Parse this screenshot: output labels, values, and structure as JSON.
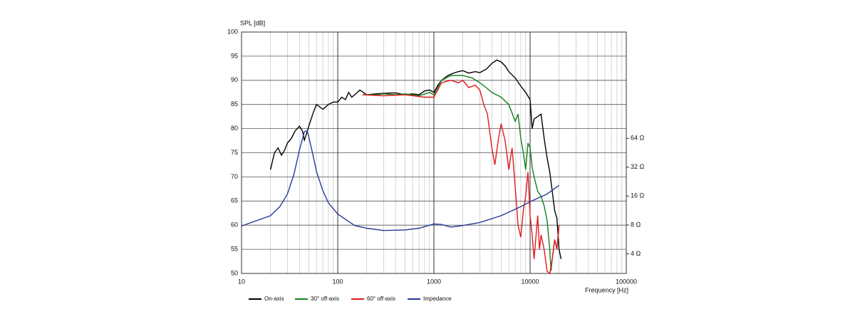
{
  "chart_data": {
    "type": "line",
    "y_label": "SPL [dB]",
    "x_label": "Frequency [Hz]",
    "x_log": true,
    "y2_log": true,
    "grid": true,
    "legend": "bottom",
    "xlim": [
      10,
      100000
    ],
    "xticks": [
      10,
      100,
      1000,
      10000,
      100000
    ],
    "ylim": [
      50,
      100
    ],
    "yticks": [
      50,
      55,
      60,
      65,
      70,
      75,
      80,
      85,
      90,
      95,
      100
    ],
    "y2lim": [
      2.5,
      820
    ],
    "y2ticks": [
      {
        "value": 4,
        "label": "4 Ω"
      },
      {
        "value": 8,
        "label": "8 Ω"
      },
      {
        "value": 16,
        "label": "16 Ω"
      },
      {
        "value": 32,
        "label": "32 Ω"
      },
      {
        "value": 64,
        "label": "64 Ω"
      }
    ],
    "series": [
      {
        "name": "On-axis",
        "color": "#000000",
        "x": [
          20,
          22,
          24,
          26,
          28,
          30,
          33,
          36,
          40,
          43,
          45,
          50,
          55,
          60,
          65,
          70,
          80,
          90,
          100,
          110,
          120,
          130,
          140,
          150,
          170,
          200,
          250,
          300,
          400,
          500,
          600,
          700,
          800,
          900,
          1000,
          1100,
          1200,
          1400,
          1600,
          1800,
          2000,
          2300,
          2700,
          3000,
          3500,
          4000,
          4500,
          5000,
          5500,
          6000,
          7000,
          8000,
          9000,
          10000,
          10500,
          11000,
          12000,
          13000,
          14000,
          15000,
          16000,
          17000,
          18000,
          19000,
          20000,
          21000
        ],
        "values": [
          71.5,
          75,
          76,
          74.5,
          75.5,
          77,
          78,
          79.5,
          80.5,
          79.5,
          77.6,
          80.5,
          83,
          85,
          84.5,
          84,
          85,
          85.5,
          85.5,
          86.5,
          86,
          87.5,
          86.5,
          87,
          88,
          87,
          87.2,
          87.3,
          87.4,
          87,
          87.2,
          87,
          87.8,
          88,
          87.5,
          89,
          90,
          91,
          91.5,
          91.8,
          92,
          91.5,
          91.8,
          91.6,
          92.3,
          93.5,
          94.2,
          93.8,
          93,
          91.8,
          90.5,
          88.8,
          87.5,
          86,
          80,
          82,
          82.5,
          83,
          78,
          74,
          71,
          67,
          63,
          61.5,
          55,
          53
        ]
      },
      {
        "name": "30° off-axis",
        "color": "#13801c",
        "x": [
          180,
          250,
          300,
          400,
          500,
          700,
          900,
          1000,
          1200,
          1500,
          2000,
          2500,
          3000,
          3500,
          4000,
          5000,
          6000,
          7000,
          7500,
          8000,
          8500,
          9000,
          9500,
          10000,
          10500,
          11000,
          12000,
          13000,
          14000,
          15000,
          16000,
          16500,
          17000,
          18000,
          19000,
          20000
        ],
        "values": [
          87,
          87,
          87.2,
          87,
          87.2,
          86.8,
          87.5,
          87,
          90,
          91,
          91,
          90.5,
          89.5,
          88.5,
          87.5,
          86.5,
          85,
          81.5,
          83,
          78,
          75,
          71.5,
          77,
          76,
          72,
          70,
          67,
          66,
          64,
          61,
          55,
          50.5,
          53,
          57,
          55,
          60
        ]
      },
      {
        "name": "60° off-axis",
        "color": "#e3191c",
        "x": [
          180,
          300,
          500,
          800,
          1000,
          1200,
          1500,
          1800,
          2000,
          2300,
          2700,
          3000,
          3300,
          3600,
          4000,
          4300,
          4700,
          5000,
          5500,
          6000,
          6500,
          7000,
          7500,
          8000,
          8500,
          9000,
          9500,
          10000,
          10500,
          11000,
          12000,
          12500,
          13000,
          14000,
          15000,
          16000,
          17000,
          18000,
          19000,
          20000
        ],
        "values": [
          87,
          86.8,
          87,
          86.5,
          86.5,
          89.5,
          90,
          89.5,
          90,
          88.5,
          89,
          88,
          85,
          83,
          76,
          72.5,
          78,
          81,
          77.5,
          71.5,
          76,
          68,
          60,
          57.5,
          63,
          66,
          71,
          62,
          58,
          53,
          62,
          55,
          58,
          55,
          50.5,
          50,
          53,
          57,
          55,
          60
        ]
      },
      {
        "name": "Impedance",
        "color": "#27399a",
        "axis": "y2",
        "x": [
          10,
          20,
          25,
          30,
          35,
          40,
          45,
          48,
          50,
          55,
          60,
          70,
          80,
          100,
          150,
          200,
          300,
          500,
          700,
          1000,
          1200,
          1500,
          2000,
          3000,
          5000,
          8000,
          10000,
          15000,
          20000
        ],
        "values": [
          7.8,
          10,
          12.4,
          16.8,
          26.7,
          48.5,
          75,
          77,
          66,
          44,
          29,
          18.2,
          13.6,
          10.4,
          7.9,
          7.4,
          7.0,
          7.1,
          7.4,
          8.2,
          8.1,
          7.6,
          7.9,
          8.5,
          10,
          12.4,
          14,
          16.8,
          20.7
        ]
      }
    ]
  }
}
